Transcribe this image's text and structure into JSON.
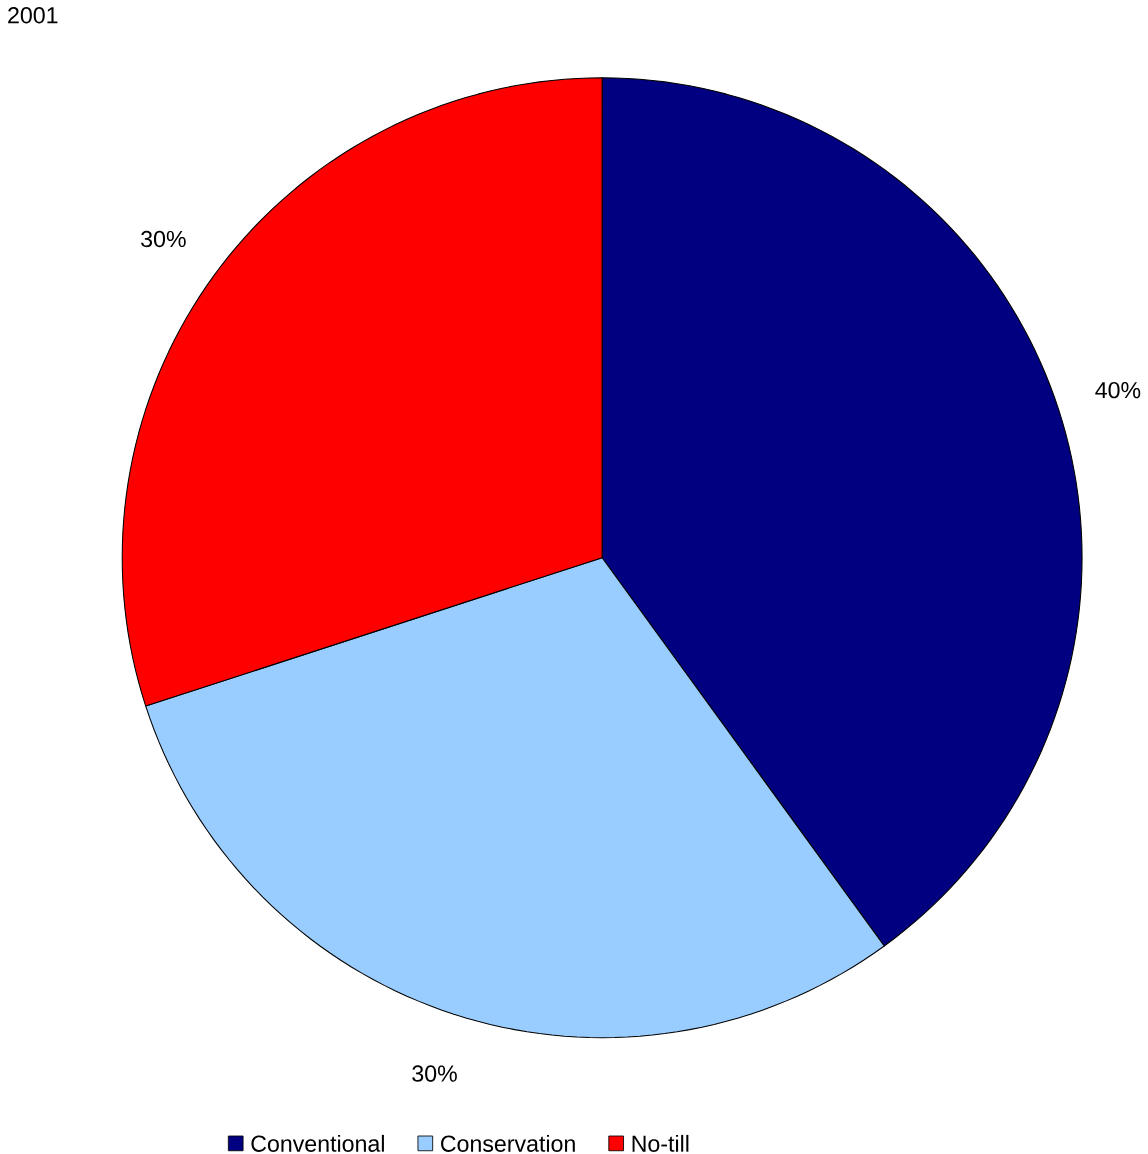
{
  "chart_data": {
    "type": "pie",
    "title": "2001",
    "categories": [
      "Conventional",
      "Conservation",
      "No-till"
    ],
    "values": [
      40,
      30,
      30
    ],
    "colors": [
      "#000080",
      "#99ccff",
      "#ff0000"
    ],
    "value_labels": [
      "40%",
      "30%",
      "30%"
    ],
    "legend": "bottom"
  }
}
